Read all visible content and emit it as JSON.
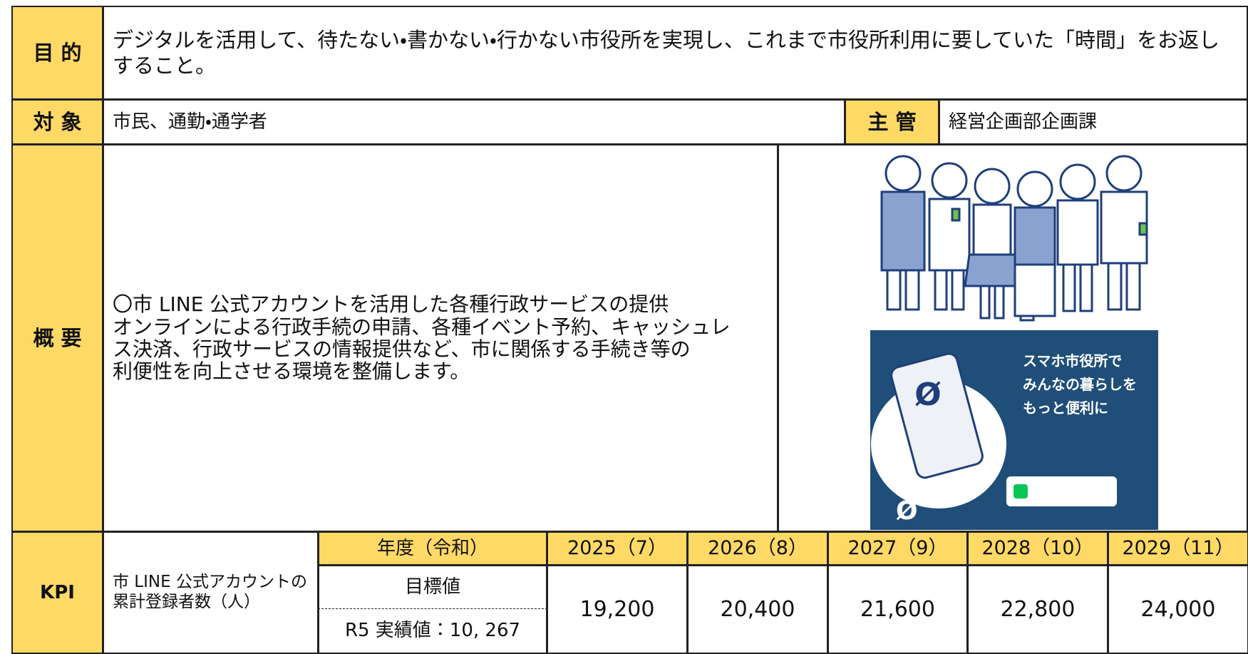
{
  "purpose": {
    "label": "目 的",
    "text": "デジタルを活用して、待たない・書かない・行かない市役所を実現し、これまで市役所利用に要していた「時間」をお返しすること。"
  },
  "target": {
    "label": "対 象",
    "text": "市民、通勤・通学者"
  },
  "manager": {
    "label": "主 管",
    "text": "経営企画部企画課"
  },
  "overview": {
    "label": "概 要",
    "lines": [
      "〇市 LINE 公式アカウントを活用した各種行政サービスの提供",
      "オンラインによる行政手続の申請、各種イベント予約、キャッシュレ",
      "ス決済、行政サービスの情報提供など、市に関係する手続き等の",
      "利便性を向上させる環境を整備します。"
    ]
  },
  "poster": {
    "heading": [
      "スマホ市役所で",
      "みんなの暮らしを",
      "もっと便利に"
    ]
  },
  "kpi": {
    "label": "KPI",
    "indicator": "市 LINE 公式アカウントの累計登録者数（人）",
    "year_header": "年度（令和）",
    "years": [
      "2025（7）",
      "2026（8）",
      "2027（9）",
      "2028（10）",
      "2029（11）"
    ],
    "target_label": "目標値",
    "actual": "R5 実績値：10, 267",
    "values": [
      "19,200",
      "20,400",
      "21,600",
      "22,800",
      "24,000"
    ]
  }
}
